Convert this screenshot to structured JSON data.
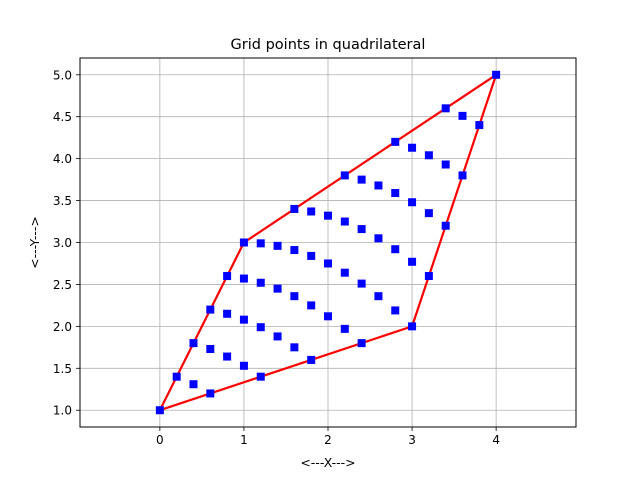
{
  "chart_data": {
    "type": "scatter",
    "title": "Grid points in quadrilateral",
    "xlabel": "<---X--->",
    "ylabel": "<---Y--->",
    "xlim": [
      -0.95,
      4.95
    ],
    "ylim": [
      0.8,
      5.2
    ],
    "xticks": [
      0,
      1,
      2,
      3,
      4
    ],
    "xtick_labels": [
      "0",
      "1",
      "2",
      "3",
      "4"
    ],
    "yticks": [
      1.0,
      1.5,
      2.0,
      2.5,
      3.0,
      3.5,
      4.0,
      4.5,
      5.0
    ],
    "ytick_labels": [
      "1.0",
      "1.5",
      "2.0",
      "2.5",
      "3.0",
      "3.5",
      "4.0",
      "4.5",
      "5.0"
    ],
    "grid": true,
    "quadrilateral": {
      "line_color": "#ff0000",
      "corners": [
        [
          0,
          1
        ],
        [
          3,
          2
        ],
        [
          4,
          5
        ],
        [
          1,
          3
        ]
      ]
    },
    "points": {
      "marker": "square",
      "color": "#0000ff",
      "grid_size": 11
    }
  }
}
